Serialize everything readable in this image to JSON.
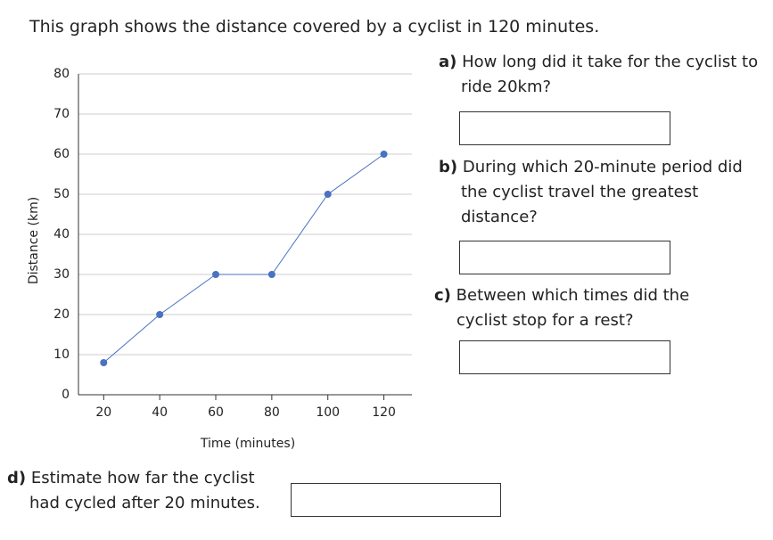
{
  "intro": "This graph shows the distance covered by a cyclist in 120 minutes.",
  "chart_data": {
    "type": "line",
    "x_label": "Time (minutes)",
    "y_label": "Distance (km)",
    "x": [
      20,
      40,
      60,
      80,
      100,
      120
    ],
    "values": [
      8,
      20,
      30,
      30,
      50,
      60
    ],
    "color": "#4a72c0",
    "xlim": [
      11,
      130
    ],
    "xticks": [
      20,
      40,
      60,
      80,
      100,
      120
    ],
    "ylim": [
      0,
      80
    ],
    "yticks": [
      0,
      10,
      20,
      30,
      40,
      50,
      60,
      70,
      80
    ],
    "grid": true
  },
  "questions": [
    {
      "label": "a)",
      "text": "How long did it take for the cyclist to ride 20km?"
    },
    {
      "label": "b)",
      "text": "During which 20-minute period did the cyclist travel the greatest distance?"
    },
    {
      "label": "c)",
      "text": "Between which times did the cyclist stop for a rest?"
    },
    {
      "label": "d)",
      "text": "Estimate how far the cyclist had cycled after 20 minutes."
    }
  ]
}
